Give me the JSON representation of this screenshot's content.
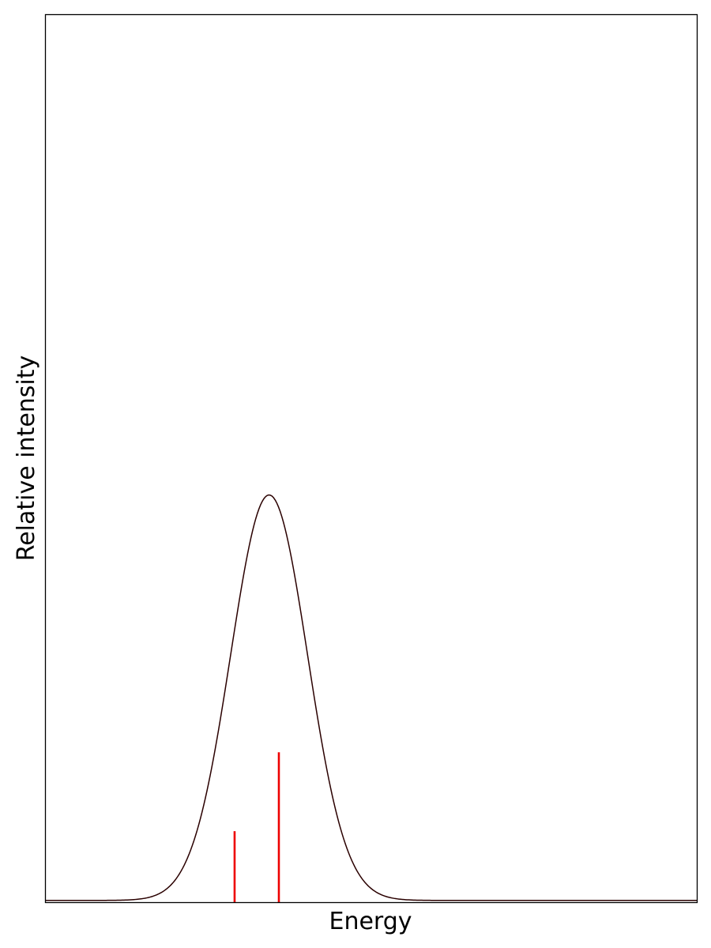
{
  "chart_data": {
    "type": "line",
    "xlabel": "Energy",
    "ylabel": "Relative intensity",
    "xlim": [
      0,
      1
    ],
    "ylim": [
      0,
      1
    ],
    "grid": false,
    "ticks_shown": false,
    "series": [
      {
        "kind": "gaussian-envelope",
        "color": "#2a0000",
        "center": 0.343,
        "sigma": 0.059,
        "peak": 0.457,
        "baseline": 0.002
      }
    ],
    "stick_spectrum": {
      "color": "#ee0000",
      "sticks": [
        {
          "x": 0.29,
          "y": 0.08
        },
        {
          "x": 0.358,
          "y": 0.169
        }
      ]
    }
  }
}
